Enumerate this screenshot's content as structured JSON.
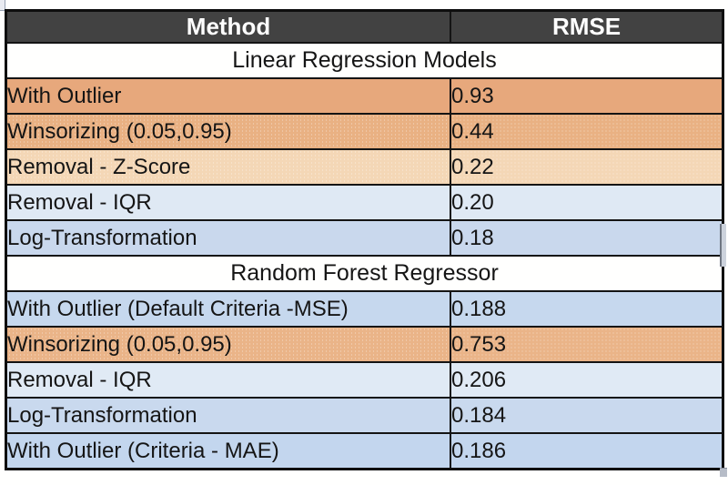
{
  "page": {
    "background": "#fffffe"
  },
  "table": {
    "columns": [
      {
        "label": "Method"
      },
      {
        "label": "RMSE"
      }
    ],
    "header": {
      "bg": "#424242",
      "text_color": "#ffffff"
    },
    "rows": [
      {
        "type": "section",
        "label": "Linear Regression Models",
        "bg": "#fffffe"
      },
      {
        "type": "data",
        "method": "With Outlier",
        "rmse": "0.93",
        "bg": "#e7a87c",
        "dotted": false
      },
      {
        "type": "data",
        "method": "Winsorizing (0.05,0.95)",
        "rmse": "0.44",
        "bg": "#e9b183",
        "dotted": true
      },
      {
        "type": "data",
        "method": "Removal - Z-Score",
        "rmse": "0.22",
        "bg": "#f4d7b6",
        "dotted": true
      },
      {
        "type": "data",
        "method": "Removal - IQR",
        "rmse": "0.20",
        "bg": "#dfe9f4",
        "dotted": false
      },
      {
        "type": "data",
        "method": "Log-Transformation",
        "rmse": "0.18",
        "bg": "#c9d8ed",
        "dotted": false
      },
      {
        "type": "section",
        "label": "Random Forest Regressor",
        "bg": "#fffffe"
      },
      {
        "type": "data",
        "method": "With Outlier (Default Criteria -MSE)",
        "rmse": "0.188",
        "bg": "#c6d8ee",
        "dotted": false
      },
      {
        "type": "data",
        "method": "Winsorizing (0.05,0.95)",
        "rmse": "0.753",
        "bg": "#eab488",
        "dotted": true
      },
      {
        "type": "data",
        "method": "Removal - IQR",
        "rmse": "0.206",
        "bg": "#e0eaf5",
        "dotted": false
      },
      {
        "type": "data",
        "method": "Log-Transformation",
        "rmse": "0.184",
        "bg": "#c9d9ee",
        "dotted": false
      },
      {
        "type": "data",
        "method": "With Outlier (Criteria - MAE)",
        "rmse": "0.186",
        "bg": "#c3d6ee",
        "dotted": false
      }
    ]
  },
  "chart_data": {
    "type": "table",
    "title": "",
    "columns": [
      "Method",
      "RMSE"
    ],
    "sections": [
      {
        "title": "Linear Regression Models",
        "rows": [
          [
            "With Outlier",
            "0.93"
          ],
          [
            "Winsorizing (0.05,0.95)",
            "0.44"
          ],
          [
            "Removal - Z-Score",
            "0.22"
          ],
          [
            "Removal - IQR",
            "0.20"
          ],
          [
            "Log-Transformation",
            "0.18"
          ]
        ]
      },
      {
        "title": "Random Forest Regressor",
        "rows": [
          [
            "With Outlier (Default Criteria -MSE)",
            "0.188"
          ],
          [
            "Winsorizing (0.05,0.95)",
            "0.753"
          ],
          [
            "Removal - IQR",
            "0.206"
          ],
          [
            "Log-Transformation",
            "0.184"
          ],
          [
            "With Outlier (Criteria - MAE)",
            "0.186"
          ]
        ]
      }
    ],
    "highlight_colors": {
      "orange_solid": "#e7a87c",
      "orange_dotted": "#e9b183",
      "peach_dotted": "#f4d7b6",
      "blue_pale": "#dfe9f4",
      "blue": "#c6d8ee"
    }
  }
}
